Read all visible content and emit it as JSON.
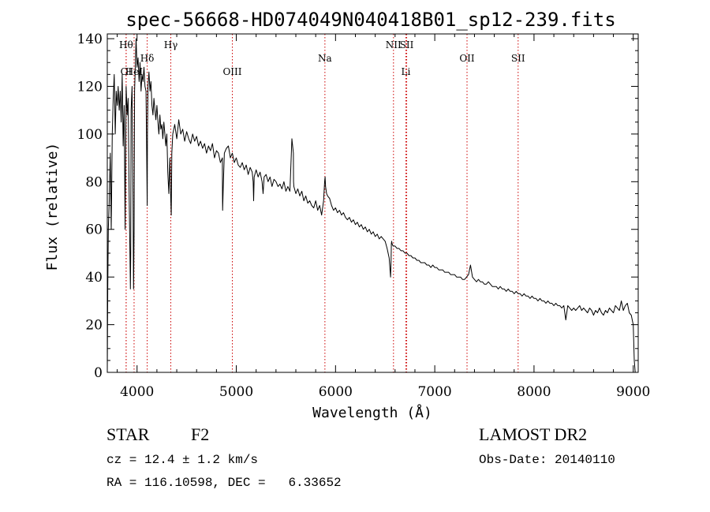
{
  "chart_data": {
    "type": "line",
    "title": "spec-56668-HD074049N040418B01_sp12-239.fits",
    "xlabel": "Wavelength (Å)",
    "ylabel": "Flux (relative)",
    "xlim": [
      3700,
      9050
    ],
    "ylim": [
      0,
      142
    ],
    "x_ticks": [
      4000,
      5000,
      6000,
      7000,
      8000,
      9000
    ],
    "y_ticks": [
      0,
      20,
      40,
      60,
      80,
      100,
      120,
      140
    ],
    "x_tick_labels": [
      "4000",
      "5000",
      "6000",
      "7000",
      "8000",
      "9000"
    ],
    "y_tick_labels": [
      "0",
      "20",
      "40",
      "60",
      "80",
      "100",
      "120",
      "140"
    ],
    "grid": false,
    "series": [
      {
        "x": [
          3700,
          3705,
          3710,
          3720,
          3730,
          3740,
          3750,
          3760,
          3770,
          3780,
          3790,
          3800,
          3810,
          3820,
          3830,
          3840,
          3850,
          3860,
          3870,
          3880,
          3890,
          3900,
          3910,
          3920,
          3930,
          3933,
          3936,
          3940,
          3950,
          3960,
          3965,
          3970,
          3975,
          3980,
          3990,
          4000,
          4010,
          4020,
          4030,
          4040,
          4050,
          4060,
          4070,
          4080,
          4090,
          4100,
          4102,
          4105,
          4110,
          4120,
          4130,
          4140,
          4150,
          4160,
          4170,
          4180,
          4190,
          4200,
          4210,
          4220,
          4230,
          4240,
          4250,
          4260,
          4270,
          4280,
          4290,
          4300,
          4310,
          4320,
          4330,
          4340,
          4345,
          4350,
          4360,
          4380,
          4400,
          4420,
          4440,
          4460,
          4480,
          4500,
          4520,
          4540,
          4560,
          4580,
          4600,
          4620,
          4640,
          4660,
          4680,
          4700,
          4720,
          4740,
          4760,
          4780,
          4800,
          4820,
          4840,
          4860,
          4861,
          4862,
          4870,
          4880,
          4900,
          4920,
          4940,
          4960,
          4980,
          5000,
          5020,
          5040,
          5060,
          5080,
          5100,
          5120,
          5140,
          5160,
          5170,
          5175,
          5180,
          5200,
          5220,
          5240,
          5260,
          5270,
          5280,
          5300,
          5320,
          5340,
          5360,
          5380,
          5400,
          5420,
          5440,
          5460,
          5480,
          5500,
          5520,
          5540,
          5560,
          5575,
          5577,
          5580,
          5600,
          5620,
          5640,
          5660,
          5680,
          5700,
          5720,
          5740,
          5760,
          5780,
          5800,
          5820,
          5840,
          5860,
          5880,
          5890,
          5895,
          5900,
          5910,
          5920,
          5940,
          5960,
          5980,
          6000,
          6020,
          6040,
          6060,
          6080,
          6100,
          6120,
          6140,
          6160,
          6180,
          6200,
          6220,
          6240,
          6260,
          6280,
          6300,
          6320,
          6340,
          6360,
          6380,
          6400,
          6420,
          6440,
          6460,
          6480,
          6500,
          6520,
          6540,
          6555,
          6560,
          6563,
          6566,
          6570,
          6580,
          6600,
          6620,
          6640,
          6660,
          6680,
          6700,
          6720,
          6740,
          6760,
          6780,
          6800,
          6820,
          6840,
          6860,
          6880,
          6900,
          6920,
          6940,
          6960,
          6980,
          7000,
          7020,
          7040,
          7060,
          7080,
          7100,
          7120,
          7140,
          7160,
          7180,
          7200,
          7220,
          7240,
          7260,
          7280,
          7300,
          7320,
          7340,
          7360,
          7380,
          7400,
          7420,
          7440,
          7460,
          7480,
          7500,
          7520,
          7540,
          7560,
          7580,
          7600,
          7620,
          7640,
          7660,
          7680,
          7700,
          7720,
          7740,
          7760,
          7780,
          7800,
          7820,
          7840,
          7860,
          7880,
          7900,
          7920,
          7940,
          7960,
          7980,
          8000,
          8020,
          8040,
          8060,
          8080,
          8100,
          8120,
          8140,
          8160,
          8180,
          8200,
          8220,
          8240,
          8260,
          8280,
          8300,
          8320,
          8340,
          8360,
          8380,
          8400,
          8420,
          8440,
          8460,
          8480,
          8500,
          8520,
          8540,
          8560,
          8580,
          8600,
          8620,
          8640,
          8660,
          8680,
          8700,
          8720,
          8740,
          8760,
          8780,
          8800,
          8820,
          8840,
          8860,
          8880,
          8900,
          8920,
          8940,
          8960,
          8980,
          9000,
          9010,
          9020
        ],
        "y": [
          0,
          35,
          60,
          72,
          92,
          60,
          100,
          115,
          125,
          100,
          118,
          112,
          120,
          110,
          118,
          105,
          125,
          95,
          112,
          60,
          120,
          108,
          115,
          75,
          45,
          35,
          50,
          110,
          120,
          70,
          35,
          60,
          118,
          125,
          140,
          128,
          132,
          122,
          130,
          118,
          125,
          122,
          128,
          120,
          118,
          80,
          70,
          100,
          120,
          126,
          118,
          122,
          112,
          108,
          115,
          110,
          106,
          112,
          105,
          100,
          108,
          102,
          104,
          98,
          105,
          100,
          95,
          100,
          84,
          75,
          90,
          72,
          66,
          92,
          100,
          104,
          98,
          106,
          100,
          102,
          97,
          101,
          98,
          96,
          100,
          97,
          99,
          95,
          97,
          94,
          96,
          92,
          95,
          93,
          96,
          90,
          93,
          92,
          88,
          90,
          75,
          68,
          80,
          92,
          94,
          95,
          90,
          92,
          88,
          90,
          87,
          86,
          88,
          85,
          87,
          83,
          86,
          84,
          80,
          72,
          82,
          85,
          82,
          84,
          80,
          75,
          82,
          83,
          80,
          82,
          78,
          81,
          80,
          78,
          79,
          77,
          80,
          76,
          78,
          76,
          98,
          92,
          80,
          78,
          75,
          77,
          74,
          76,
          72,
          74,
          71,
          72,
          70,
          69,
          72,
          68,
          70,
          66,
          72,
          80,
          82,
          78,
          75,
          74,
          73,
          70,
          68,
          69,
          67,
          68,
          66,
          67,
          65,
          64,
          65,
          63,
          64,
          62,
          63,
          61,
          62,
          60,
          61,
          59,
          60,
          58,
          59,
          57,
          58,
          56,
          57,
          56,
          55,
          52,
          48,
          40,
          48,
          54,
          55,
          54,
          53,
          53,
          52,
          52,
          51,
          51,
          50,
          50,
          49,
          49,
          48,
          48,
          47,
          47,
          46,
          46,
          46,
          45,
          45,
          44,
          45,
          44,
          44,
          43,
          43,
          43,
          42,
          42,
          42,
          41,
          41,
          41,
          40,
          40,
          40,
          39,
          39,
          40,
          41,
          45,
          40,
          39,
          38,
          39,
          38,
          38,
          37,
          37,
          38,
          37,
          36,
          36,
          36,
          35,
          36,
          35,
          35,
          34,
          35,
          34,
          34,
          33,
          34,
          33,
          33,
          32,
          33,
          32,
          32,
          31,
          32,
          31,
          31,
          30,
          31,
          30,
          30,
          29,
          30,
          29,
          29,
          28,
          29,
          28,
          28,
          27,
          28,
          22,
          28,
          27,
          26,
          27,
          26,
          27,
          28,
          26,
          27,
          26,
          25,
          27,
          26,
          24,
          26,
          25,
          27,
          25,
          24,
          26,
          25,
          27,
          26,
          25,
          28,
          27,
          26,
          30,
          26,
          28,
          29,
          25,
          24,
          20,
          5,
          0
        ]
      }
    ],
    "lines": [
      {
        "label": "OI",
        "x": 3890,
        "label_row": 2
      },
      {
        "label": "Hθ",
        "x": 3890,
        "label_row": 0
      },
      {
        "label": "HeI",
        "x": 3970,
        "label_row": 2
      },
      {
        "label": "Hδ",
        "x": 4102,
        "label_row": 1
      },
      {
        "label": "Hγ",
        "x": 4340,
        "label_row": 0
      },
      {
        "label": "OIII",
        "x": 4960,
        "label_row": 2
      },
      {
        "label": "Na",
        "x": 5893,
        "label_row": 1
      },
      {
        "label": "NII",
        "x": 6584,
        "label_row": 0
      },
      {
        "label": "SII",
        "x": 6717,
        "label_row": 0
      },
      {
        "label": "Li",
        "x": 6708,
        "label_row": 2
      },
      {
        "label": "OII",
        "x": 7325,
        "label_row": 1
      },
      {
        "label": "SII",
        "x": 7840,
        "label_row": 1
      }
    ]
  },
  "info": {
    "class_label": "STAR",
    "subclass": "F2",
    "survey": "LAMOST DR2",
    "redshift_text": "cz = 12.4 ± 1.2 km/s",
    "obs_date_text": "Obs-Date: 20140110",
    "coords_text": "RA = 116.10598, DEC =   6.33652"
  },
  "colors": {
    "spectrum": "#000000",
    "marker_lines": "#cc0000",
    "axes": "#000000"
  }
}
